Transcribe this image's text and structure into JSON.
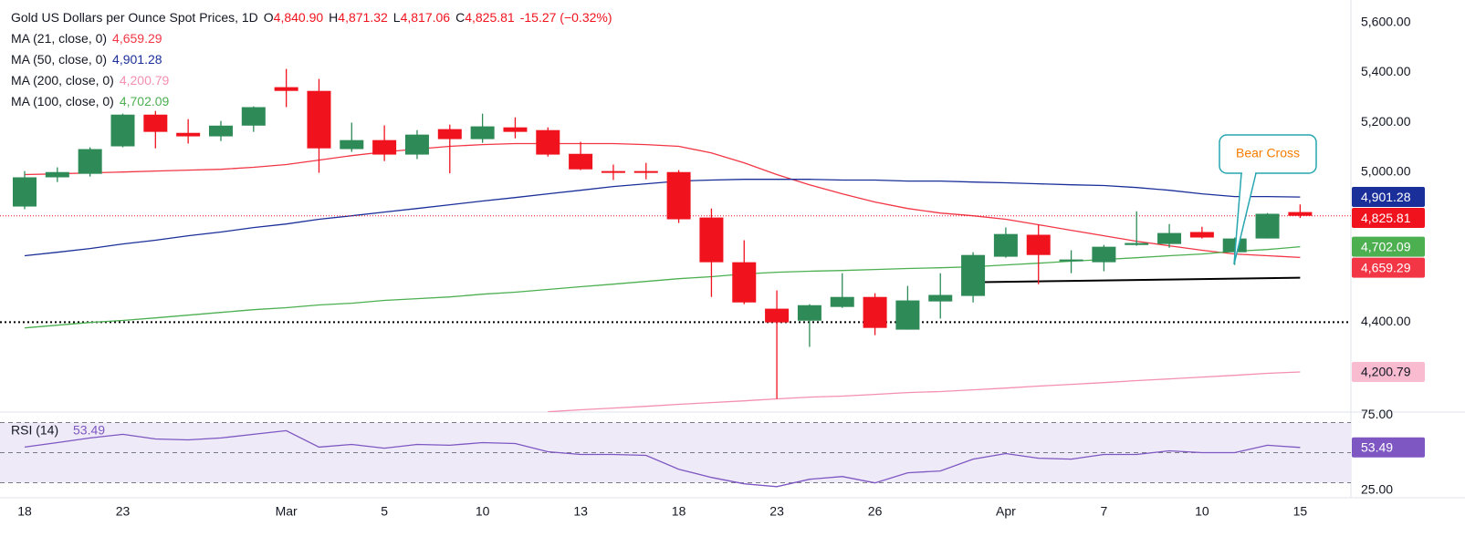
{
  "chart_data": [
    {
      "type": "candlestick",
      "title": "Gold US Dollars per Ounce Spot Prices, 1D",
      "ohlc_labels": [
        {
          "key": "O",
          "text": "4,840.90"
        },
        {
          "key": "H",
          "text": "4,871.32"
        },
        {
          "key": "L",
          "text": "4,817.06"
        },
        {
          "key": "C",
          "text": "4,825.81"
        }
      ],
      "change": "-15.27 (−0.32%)",
      "categories": [
        "18",
        null,
        null,
        "23",
        null,
        null,
        null,
        null,
        "Mar",
        null,
        null,
        "5",
        null,
        null,
        "10",
        null,
        null,
        "13",
        null,
        null,
        "18",
        null,
        null,
        "23",
        null,
        null,
        "26",
        null,
        null,
        null,
        "Apr",
        null,
        null,
        "7",
        null,
        null,
        "10",
        null,
        null,
        "15"
      ],
      "open": [
        4863,
        4980,
        4994,
        5104,
        5231,
        5158,
        5144,
        5187,
        5341,
        5326,
        5093,
        5129,
        5071,
        5173,
        5133,
        5180,
        5169,
        5074,
        5005,
        5005,
        5001,
        4819,
        4640,
        4454,
        4406,
        4461,
        4501,
        4370,
        4483,
        4505,
        4662,
        4750,
        4644,
        4640,
        4709,
        4713,
        4761,
        4680,
        4735,
        4840.9
      ],
      "high": [
        5005,
        5020,
        5100,
        5235,
        5246,
        5213,
        5206,
        5264,
        5414,
        5374,
        5199,
        5188,
        5169,
        5191,
        5235,
        5220,
        5180,
        5122,
        5031,
        5038,
        5009,
        4855,
        4728,
        4527,
        4472,
        4596,
        4516,
        4545,
        4596,
        4680,
        4779,
        4790,
        4688,
        4709,
        4844,
        4793,
        4782,
        4739,
        4837,
        4871.32
      ],
      "low": [
        4852,
        4961,
        4983,
        5100,
        5096,
        5115,
        5125,
        5162,
        5261,
        4998,
        5082,
        5045,
        5053,
        4996,
        5118,
        5136,
        5063,
        5009,
        4969,
        4972,
        4797,
        4501,
        4472,
        4093,
        4301,
        4457,
        4348,
        4370,
        4414,
        4479,
        4658,
        4552,
        4596,
        4604,
        4706,
        4698,
        4735,
        4629,
        4735,
        4817.06
      ],
      "close": [
        4980,
        5001,
        5093,
        5231,
        5162,
        5144,
        5187,
        5261,
        5326,
        5096,
        5129,
        5071,
        5151,
        5133,
        5184,
        5162,
        5071,
        5012,
        5001,
        5001,
        4812,
        4640,
        4479,
        4399,
        4468,
        4501,
        4377,
        4487,
        4509,
        4669,
        4753,
        4669,
        4651,
        4702,
        4717,
        4757,
        4739,
        4735,
        4834,
        4825.81
      ],
      "up_color": "#2e8b57",
      "down_color": "#f0131e",
      "series": [
        {
          "name": "MA (21, close, 0)",
          "legend_value": "4,659.29",
          "color": "#f23645",
          "values": [
            4991,
            4994,
            4998,
            5001,
            5005,
            5009,
            5012,
            5020,
            5031,
            5049,
            5067,
            5082,
            5093,
            5104,
            5111,
            5115,
            5115,
            5115,
            5115,
            5111,
            5104,
            5078,
            5038,
            4991,
            4950,
            4914,
            4881,
            4855,
            4837,
            4826,
            4812,
            4790,
            4768,
            4746,
            4724,
            4706,
            4688,
            4673,
            4666,
            4659.29
          ]
        },
        {
          "name": "MA (50, close, 0)",
          "legend_value": "4,901.28",
          "color": "#1a2f9a",
          "values": [
            4666,
            4680,
            4695,
            4713,
            4728,
            4746,
            4761,
            4779,
            4793,
            4812,
            4826,
            4841,
            4855,
            4870,
            4885,
            4899,
            4914,
            4928,
            4943,
            4954,
            4965,
            4969,
            4972,
            4972,
            4972,
            4969,
            4969,
            4965,
            4965,
            4961,
            4958,
            4954,
            4950,
            4947,
            4939,
            4928,
            4914,
            4903,
            4903,
            4901.28
          ]
        },
        {
          "name": "MA (200, close, 0)",
          "legend_value": "4,200.79",
          "color": "#f48fb1",
          "values": [
            null,
            null,
            null,
            null,
            null,
            null,
            null,
            null,
            null,
            null,
            null,
            null,
            null,
            null,
            null,
            null,
            4041,
            4049,
            4056,
            4063,
            4071,
            4078,
            4085,
            4093,
            4100,
            4104,
            4111,
            4118,
            4122,
            4129,
            4136,
            4144,
            4151,
            4158,
            4166,
            4173,
            4180,
            4187,
            4195,
            4200.79
          ]
        },
        {
          "name": "MA (100, close, 0)",
          "legend_value": "4,702.09",
          "color": "#4caf50",
          "values": [
            4377,
            4388,
            4399,
            4407,
            4417,
            4428,
            4439,
            4450,
            4458,
            4469,
            4476,
            4487,
            4494,
            4501,
            4512,
            4520,
            4531,
            4542,
            4552,
            4563,
            4574,
            4582,
            4593,
            4600,
            4604,
            4607,
            4611,
            4615,
            4618,
            4622,
            4629,
            4636,
            4644,
            4651,
            4658,
            4666,
            4673,
            4684,
            4691,
            4702.09
          ]
        }
      ],
      "support_line": {
        "color": "#000000",
        "values": [
          null,
          null,
          null,
          null,
          null,
          null,
          null,
          null,
          null,
          null,
          null,
          null,
          null,
          null,
          null,
          null,
          null,
          null,
          null,
          null,
          null,
          null,
          null,
          null,
          null,
          null,
          null,
          null,
          null,
          4560,
          4561.8,
          4563.6,
          4565.4,
          4567.2,
          4569,
          4570.8,
          4572.6,
          4574.4,
          4576.2,
          4578
        ]
      },
      "levels": [
        {
          "value": 4400,
          "color": "#000000"
        }
      ],
      "price_tags": [
        {
          "value": 4901.28,
          "label": "4,901.28",
          "color": "#1a2f9a",
          "text_color": "#ffffff"
        },
        {
          "value": 4825.81,
          "label": "4,825.81",
          "color": "#f0131e",
          "text_color": "#ffffff"
        },
        {
          "value": 4702.09,
          "label": "4,702.09",
          "color": "#4caf50",
          "text_color": "#ffffff"
        },
        {
          "value": 4659.29,
          "label": "4,659.29",
          "color": "#f23645",
          "text_color": "#ffffff"
        },
        {
          "value": 4200.79,
          "label": "4,200.79",
          "color": "#f8bbd0",
          "text_color": "#131722"
        }
      ],
      "ylim": [
        4040,
        5690
      ],
      "yticks": [
        {
          "value": 4400,
          "label": "4,400.00"
        },
        {
          "value": 5000,
          "label": "5,000.00"
        },
        {
          "value": 5200,
          "label": "5,200.00"
        },
        {
          "value": 5400,
          "label": "5,400.00"
        },
        {
          "value": 5600,
          "label": "5,600.00"
        }
      ],
      "annotation": "Bear Cross"
    },
    {
      "type": "line",
      "title": "RSI (14)",
      "legend_value": "53.49",
      "color": "#7e57c2",
      "band_fill": "#efeaf8",
      "values": [
        53.7,
        56.7,
        59.8,
        62.2,
        59.1,
        58.5,
        59.8,
        62.2,
        64.6,
        53.7,
        55.5,
        53.0,
        55.5,
        54.9,
        56.7,
        56.1,
        50.6,
        48.8,
        48.8,
        48.2,
        39.0,
        33.5,
        29.3,
        27.4,
        32.3,
        34.1,
        29.9,
        36.6,
        37.8,
        45.7,
        49.4,
        46.3,
        45.7,
        48.8,
        48.8,
        51.2,
        50.0,
        50.0,
        54.9,
        53.49
      ],
      "bands": [
        70,
        50,
        30
      ],
      "price_tag": {
        "value": 53.49,
        "label": "53.49"
      },
      "ylim": [
        20,
        77
      ],
      "yticks": [
        {
          "value": 25,
          "label": "25.00"
        },
        {
          "value": 75,
          "label": "75.00"
        }
      ]
    }
  ]
}
